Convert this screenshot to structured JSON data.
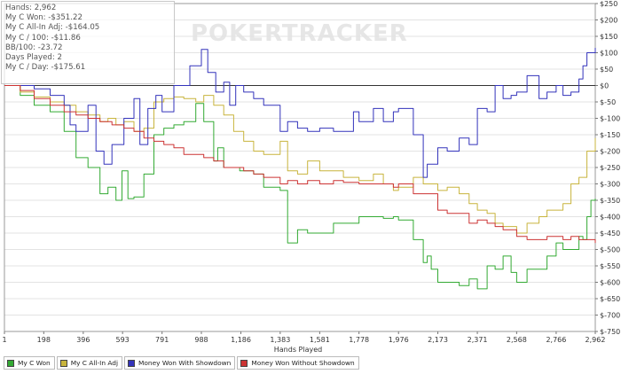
{
  "watermark": "POKERTRACKER",
  "stats": [
    "Hands: 2,962",
    "My C Won: -$351.22",
    "My C All-In Adj: -$164.05",
    "My C / 100: -$11.86",
    "BB/100: -23.72",
    "Days Played: 2",
    "My C / Day: -$175.61"
  ],
  "legend": [
    {
      "label": "My C Won",
      "color": "#33aa33"
    },
    {
      "label": "My C All-In Adj",
      "color": "#c8b43c"
    },
    {
      "label": "Money Won With Showdown",
      "color": "#3333bb"
    },
    {
      "label": "Money Won Without Showdown",
      "color": "#cc3333"
    }
  ],
  "chart_data": {
    "type": "line",
    "xlabel": "Hands Played",
    "ylabel": "",
    "xlim": [
      1,
      2962
    ],
    "ylim": [
      -750,
      250
    ],
    "x_ticks": [
      1,
      198,
      396,
      593,
      791,
      988,
      1186,
      1383,
      1581,
      1778,
      1976,
      2173,
      2371,
      2568,
      2766,
      2962
    ],
    "x_tick_labels": [
      "1",
      "198",
      "396",
      "593",
      "791",
      "988",
      "1,186",
      "1,383",
      "1,581",
      "1,778",
      "1,976",
      "2,173",
      "2,371",
      "2,568",
      "2,766",
      "2,962"
    ],
    "y_ticks": [
      250,
      200,
      150,
      100,
      50,
      0,
      -50,
      -100,
      -150,
      -200,
      -250,
      -300,
      -350,
      -400,
      -450,
      -500,
      -550,
      -600,
      -650,
      -700,
      -750
    ],
    "y_tick_labels": [
      "$250",
      "$200",
      "$150",
      "$100",
      "$50",
      "$0",
      "$-50",
      "$-100",
      "$-150",
      "$-200",
      "$-250",
      "$-300",
      "$-350",
      "$-400",
      "$-450",
      "$-500",
      "$-550",
      "$-600",
      "$-650",
      "$-700",
      "$-750"
    ],
    "zero_line": 0,
    "grid": "horizontal",
    "series": [
      {
        "name": "My C Won",
        "color": "#33aa33",
        "x": [
          1,
          80,
          150,
          230,
          300,
          360,
          420,
          480,
          520,
          560,
          590,
          620,
          650,
          700,
          750,
          800,
          850,
          900,
          960,
          1000,
          1050,
          1070,
          1100,
          1180,
          1250,
          1300,
          1383,
          1420,
          1470,
          1520,
          1581,
          1650,
          1700,
          1778,
          1850,
          1900,
          1950,
          1976,
          2050,
          2100,
          2120,
          2140,
          2173,
          2220,
          2280,
          2330,
          2371,
          2420,
          2460,
          2500,
          2540,
          2568,
          2620,
          2680,
          2720,
          2766,
          2800,
          2840,
          2880,
          2900,
          2920,
          2940,
          2962
        ],
        "y": [
          0,
          -30,
          -60,
          -80,
          -140,
          -220,
          -250,
          -330,
          -310,
          -350,
          -260,
          -345,
          -340,
          -270,
          -150,
          -130,
          -120,
          -110,
          -55,
          -110,
          -230,
          -190,
          -250,
          -260,
          -270,
          -310,
          -320,
          -480,
          -440,
          -450,
          -450,
          -420,
          -420,
          -400,
          -400,
          -405,
          -400,
          -410,
          -470,
          -540,
          -520,
          -560,
          -600,
          -600,
          -610,
          -590,
          -620,
          -550,
          -560,
          -520,
          -570,
          -600,
          -560,
          -560,
          -520,
          -480,
          -500,
          -500,
          -460,
          -470,
          -400,
          -350,
          -345
        ]
      },
      {
        "name": "My C All-In Adj",
        "color": "#c8b43c",
        "x": [
          1,
          80,
          150,
          230,
          300,
          360,
          420,
          480,
          520,
          560,
          600,
          650,
          700,
          750,
          800,
          850,
          900,
          960,
          1000,
          1050,
          1100,
          1150,
          1200,
          1250,
          1300,
          1383,
          1420,
          1470,
          1520,
          1581,
          1650,
          1700,
          1778,
          1850,
          1900,
          1950,
          1976,
          2050,
          2100,
          2173,
          2220,
          2280,
          2330,
          2371,
          2420,
          2460,
          2500,
          2568,
          2620,
          2680,
          2720,
          2766,
          2800,
          2840,
          2880,
          2920,
          2962
        ],
        "y": [
          0,
          -20,
          -35,
          -50,
          -60,
          -80,
          -90,
          -110,
          -100,
          -120,
          -110,
          -140,
          -130,
          -50,
          -40,
          -35,
          -40,
          -50,
          -30,
          -60,
          -90,
          -140,
          -170,
          -200,
          -210,
          -170,
          -260,
          -270,
          -230,
          -260,
          -260,
          -280,
          -290,
          -270,
          -300,
          -320,
          -310,
          -280,
          -300,
          -320,
          -310,
          -330,
          -360,
          -380,
          -390,
          -420,
          -430,
          -450,
          -420,
          -400,
          -380,
          -380,
          -360,
          -300,
          -280,
          -200,
          -160
        ]
      },
      {
        "name": "Money Won With Showdown",
        "color": "#3333bb",
        "x": [
          1,
          80,
          150,
          230,
          300,
          330,
          360,
          420,
          460,
          500,
          540,
          600,
          650,
          680,
          720,
          760,
          791,
          850,
          900,
          930,
          988,
          1020,
          1060,
          1100,
          1130,
          1160,
          1200,
          1250,
          1300,
          1383,
          1420,
          1470,
          1520,
          1581,
          1650,
          1700,
          1750,
          1778,
          1850,
          1900,
          1950,
          1976,
          2050,
          2100,
          2120,
          2173,
          2220,
          2280,
          2330,
          2371,
          2420,
          2460,
          2500,
          2540,
          2568,
          2620,
          2680,
          2720,
          2766,
          2800,
          2840,
          2880,
          2900,
          2920,
          2962
        ],
        "y": [
          0,
          0,
          -10,
          -30,
          -60,
          -120,
          -140,
          -60,
          -200,
          -240,
          -180,
          -100,
          -40,
          -180,
          -70,
          -30,
          -80,
          0,
          0,
          60,
          110,
          40,
          -20,
          10,
          -60,
          0,
          -20,
          -40,
          -60,
          -140,
          -110,
          -130,
          -140,
          -130,
          -140,
          -140,
          -80,
          -110,
          -70,
          -110,
          -80,
          -70,
          -150,
          -280,
          -240,
          -190,
          -200,
          -160,
          -180,
          -70,
          -80,
          0,
          -40,
          -30,
          -20,
          30,
          -40,
          -20,
          0,
          -30,
          -20,
          20,
          60,
          100,
          115
        ]
      },
      {
        "name": "Money Won Without Showdown",
        "color": "#cc3333",
        "x": [
          1,
          80,
          150,
          230,
          300,
          360,
          420,
          480,
          540,
          600,
          650,
          700,
          750,
          800,
          850,
          900,
          960,
          1000,
          1050,
          1100,
          1150,
          1200,
          1250,
          1300,
          1383,
          1420,
          1470,
          1520,
          1581,
          1650,
          1700,
          1778,
          1850,
          1900,
          1950,
          1976,
          2050,
          2100,
          2173,
          2220,
          2280,
          2330,
          2371,
          2420,
          2460,
          2500,
          2568,
          2620,
          2680,
          2720,
          2766,
          2800,
          2840,
          2880,
          2920,
          2962
        ],
        "y": [
          0,
          -15,
          -40,
          -60,
          -80,
          -90,
          -100,
          -110,
          -120,
          -130,
          -140,
          -160,
          -170,
          -180,
          -190,
          -210,
          -210,
          -220,
          -230,
          -250,
          -250,
          -260,
          -270,
          -280,
          -300,
          -290,
          -300,
          -290,
          -300,
          -290,
          -295,
          -300,
          -300,
          -300,
          -310,
          -300,
          -330,
          -330,
          -380,
          -390,
          -390,
          -420,
          -410,
          -420,
          -430,
          -440,
          -460,
          -470,
          -470,
          -460,
          -460,
          -470,
          -460,
          -470,
          -470,
          -480
        ]
      }
    ]
  }
}
